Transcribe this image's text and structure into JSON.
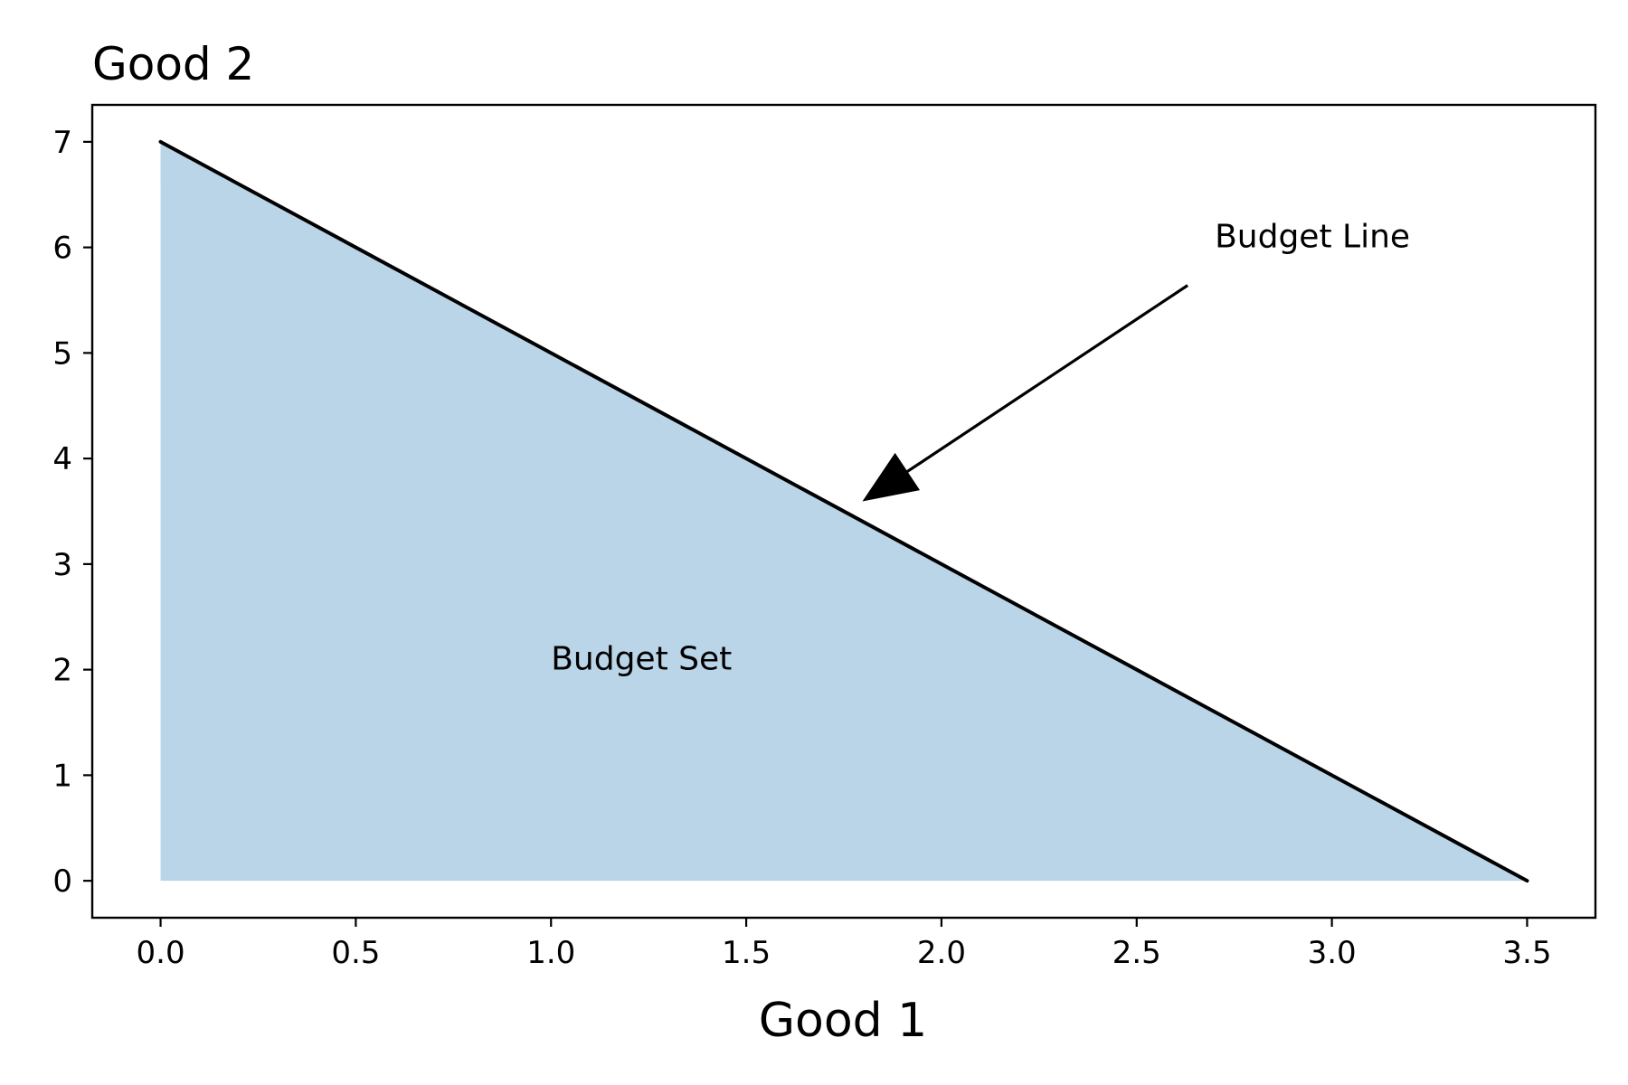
{
  "chart_data": {
    "type": "area",
    "title": "",
    "ylabel": "Good 2",
    "xlabel": "Good 1",
    "xlim": [
      -0.175,
      3.675
    ],
    "ylim": [
      -0.35,
      7.35
    ],
    "x_ticks": [
      0.0,
      0.5,
      1.0,
      1.5,
      2.0,
      2.5,
      3.0,
      3.5
    ],
    "x_tick_labels": [
      "0.0",
      "0.5",
      "1.0",
      "1.5",
      "2.0",
      "2.5",
      "3.0",
      "3.5"
    ],
    "y_ticks": [
      0,
      1,
      2,
      3,
      4,
      5,
      6,
      7
    ],
    "y_tick_labels": [
      "0",
      "1",
      "2",
      "3",
      "4",
      "5",
      "6",
      "7"
    ],
    "grid": false,
    "series": [
      {
        "kind": "line",
        "x": [
          0.0,
          3.5
        ],
        "y": [
          7.0,
          0.0
        ],
        "color": "#000000"
      },
      {
        "kind": "fill",
        "x": [
          0.0,
          3.5
        ],
        "y": [
          7.0,
          0.0
        ],
        "baseline": 0,
        "color": "#bad4e8"
      }
    ],
    "annotations": [
      {
        "name": "budget-line-label",
        "text": "Budget Line",
        "text_x": 2.7,
        "text_y": 6.0,
        "arrow_to_x": 1.8,
        "arrow_to_y": 3.6
      },
      {
        "name": "budget-set-label",
        "text": "Budget Set",
        "text_x": 1.0,
        "text_y": 2.0
      }
    ]
  }
}
